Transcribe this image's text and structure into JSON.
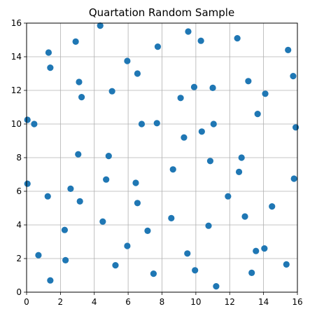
{
  "chart_data": {
    "type": "scatter",
    "title": "Quartation Random Sample",
    "xlabel": "",
    "ylabel": "",
    "xlim": [
      0,
      16
    ],
    "ylim": [
      0,
      16
    ],
    "xticks": [
      0,
      2,
      4,
      6,
      8,
      10,
      12,
      14,
      16
    ],
    "yticks": [
      0,
      2,
      4,
      6,
      8,
      10,
      12,
      14,
      16
    ],
    "grid": true,
    "marker_color": "#1f77b4",
    "points": [
      [
        0.05,
        10.25
      ],
      [
        0.05,
        6.45
      ],
      [
        0.45,
        10.0
      ],
      [
        0.7,
        2.2
      ],
      [
        1.25,
        5.7
      ],
      [
        1.3,
        14.25
      ],
      [
        1.4,
        13.35
      ],
      [
        1.4,
        0.7
      ],
      [
        2.25,
        3.7
      ],
      [
        2.3,
        1.9
      ],
      [
        2.6,
        6.15
      ],
      [
        2.9,
        14.9
      ],
      [
        3.05,
        8.2
      ],
      [
        3.1,
        12.5
      ],
      [
        3.15,
        5.4
      ],
      [
        3.25,
        11.6
      ],
      [
        4.35,
        15.85
      ],
      [
        4.5,
        4.2
      ],
      [
        4.7,
        6.7
      ],
      [
        4.85,
        8.1
      ],
      [
        5.05,
        11.95
      ],
      [
        5.25,
        1.6
      ],
      [
        5.95,
        2.75
      ],
      [
        5.95,
        13.75
      ],
      [
        6.45,
        6.5
      ],
      [
        6.55,
        13.0
      ],
      [
        6.55,
        5.3
      ],
      [
        6.8,
        10.0
      ],
      [
        7.15,
        3.65
      ],
      [
        7.5,
        1.1
      ],
      [
        7.7,
        10.05
      ],
      [
        7.75,
        14.6
      ],
      [
        8.55,
        4.4
      ],
      [
        8.65,
        7.3
      ],
      [
        9.1,
        11.55
      ],
      [
        9.3,
        9.2
      ],
      [
        9.5,
        2.3
      ],
      [
        9.55,
        15.5
      ],
      [
        9.9,
        12.2
      ],
      [
        9.95,
        1.3
      ],
      [
        10.3,
        14.95
      ],
      [
        10.35,
        9.55
      ],
      [
        10.75,
        3.95
      ],
      [
        10.85,
        7.8
      ],
      [
        11.0,
        12.15
      ],
      [
        11.05,
        10.0
      ],
      [
        11.2,
        0.35
      ],
      [
        11.9,
        5.7
      ],
      [
        12.45,
        15.1
      ],
      [
        12.55,
        7.15
      ],
      [
        12.7,
        8.0
      ],
      [
        12.9,
        4.5
      ],
      [
        13.1,
        12.55
      ],
      [
        13.3,
        1.15
      ],
      [
        13.55,
        2.45
      ],
      [
        13.65,
        10.6
      ],
      [
        14.05,
        2.6
      ],
      [
        14.1,
        11.8
      ],
      [
        14.5,
        5.1
      ],
      [
        15.35,
        1.65
      ],
      [
        15.45,
        14.4
      ],
      [
        15.75,
        12.85
      ],
      [
        15.8,
        6.75
      ],
      [
        15.9,
        9.8
      ]
    ]
  }
}
